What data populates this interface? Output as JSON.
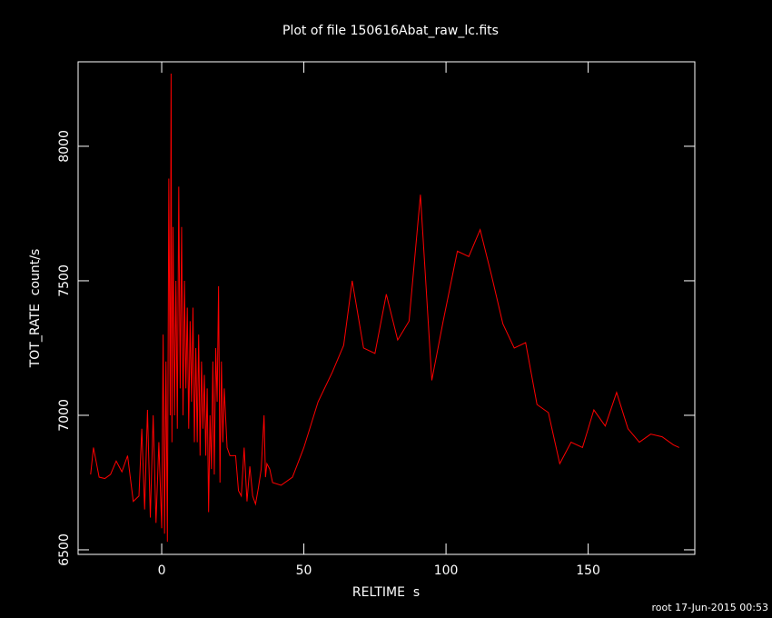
{
  "chart_data": {
    "type": "line",
    "title": "Plot of file 150616Abat_raw_lc.fits",
    "xlabel": "RELTIME  s",
    "ylabel": "TOT_RATE  count/s",
    "footer": "root 17-Jun-2015 00:53",
    "xlim": [
      -29.4,
      187.5
    ],
    "xticks": [
      0,
      50,
      100,
      150
    ],
    "ylim": [
      6483,
      8314
    ],
    "yticks": [
      6500,
      7000,
      7500,
      8000
    ],
    "series": [
      {
        "color": "#ff0000",
        "x": [
          -25,
          -24,
          -22,
          -20,
          -18,
          -16,
          -14,
          -12,
          -10,
          -8,
          -7,
          -6,
          -5,
          -4,
          -3,
          -2,
          -1,
          0,
          0.5,
          1,
          1.5,
          2,
          2.5,
          3,
          3.3,
          3.6,
          4,
          4.5,
          5,
          5.5,
          6,
          6.5,
          7,
          7.5,
          8,
          8.5,
          9,
          9.5,
          10,
          10.5,
          11,
          11.5,
          12,
          12.5,
          13,
          13.5,
          14,
          14.5,
          15,
          15.5,
          16,
          16.5,
          17,
          17.5,
          18,
          18.5,
          19,
          19.5,
          20,
          20.5,
          21,
          21.5,
          22,
          23,
          24,
          26,
          27,
          28,
          29,
          30,
          31,
          32,
          33,
          34,
          35,
          36,
          36.5,
          37,
          38,
          39,
          42,
          46,
          50,
          55,
          60,
          64,
          67,
          71,
          75,
          79,
          83,
          87,
          91,
          95,
          99,
          104,
          108,
          112,
          116,
          120,
          124,
          128,
          132,
          136,
          140,
          144,
          148,
          152,
          156,
          160,
          164,
          168,
          172,
          176,
          180,
          182
        ],
        "values": [
          6780,
          6880,
          6770,
          6765,
          6780,
          6830,
          6790,
          6850,
          6680,
          6700,
          6950,
          6650,
          7020,
          6620,
          7000,
          6600,
          6900,
          6580,
          7300,
          6560,
          7200,
          6530,
          7880,
          7000,
          8270,
          6900,
          7700,
          7000,
          7500,
          6950,
          7850,
          7100,
          7700,
          7000,
          7500,
          7100,
          7400,
          6950,
          7350,
          7050,
          7400,
          6900,
          7250,
          6900,
          7300,
          6850,
          7200,
          6950,
          7150,
          6850,
          7100,
          6640,
          7000,
          6800,
          7200,
          6780,
          7250,
          7050,
          7480,
          6750,
          7200,
          6900,
          7100,
          6880,
          6850,
          6850,
          6720,
          6700,
          6880,
          6680,
          6810,
          6700,
          6670,
          6730,
          6800,
          7000,
          6770,
          6820,
          6800,
          6750,
          6740,
          6770,
          6880,
          7050,
          7160,
          7260,
          7500,
          7250,
          7230,
          7450,
          7280,
          7350,
          7820,
          7130,
          7350,
          7610,
          7590,
          7690,
          7520,
          7340,
          7250,
          7270,
          7040,
          7010,
          6820,
          6900,
          6880,
          7020,
          6960,
          7085,
          6950,
          6900,
          6930,
          6920,
          6890,
          6880
        ]
      }
    ]
  }
}
